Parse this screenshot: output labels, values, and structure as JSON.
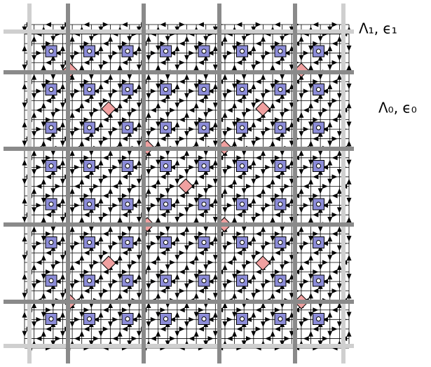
{
  "labels": [
    "Λ₁, ϵ₁",
    "Λ₀, ϵ₀"
  ]
}
